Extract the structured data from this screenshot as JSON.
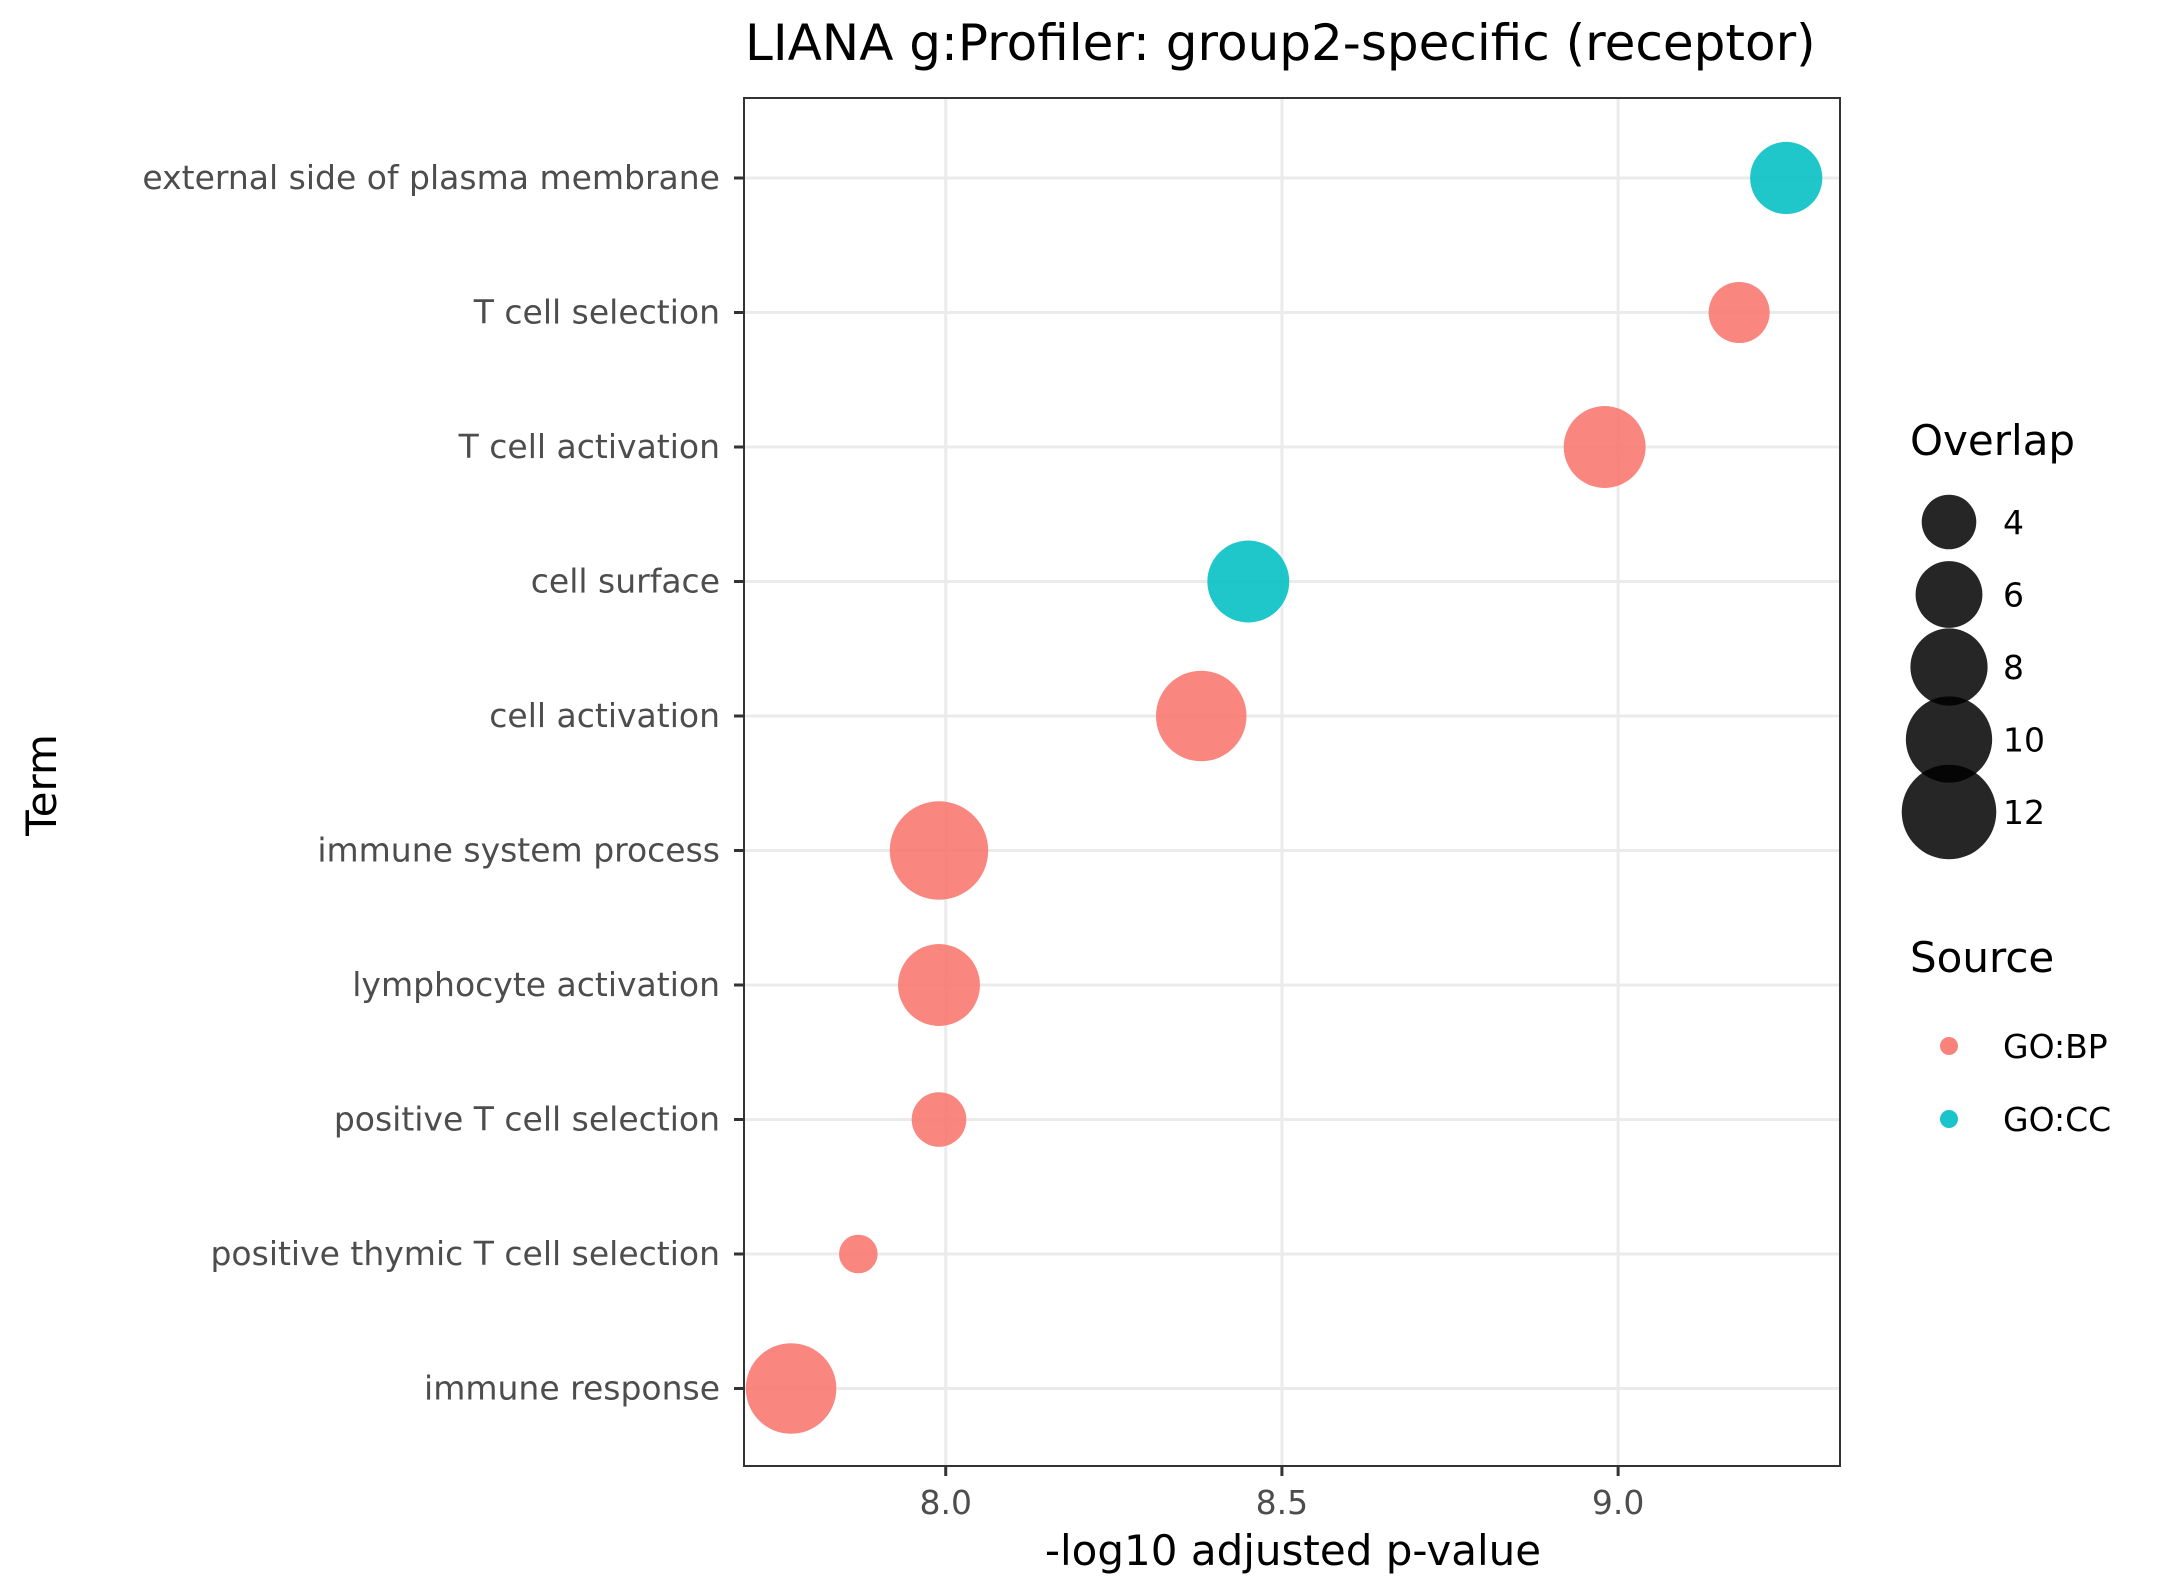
{
  "chart_data": {
    "type": "scatter",
    "title": "LIANA g:Profiler: group2-specific (receptor)",
    "xlabel": "-log10 adjusted p-value",
    "ylabel": "Term",
    "xlim": [
      7.7,
      9.33
    ],
    "xticks": [
      8.0,
      8.5,
      9.0
    ],
    "xtick_labels": [
      "8.0",
      "8.5",
      "9.0"
    ],
    "grid": true,
    "legend_position": "right",
    "categories": [
      "external side of plasma membrane",
      "T cell selection",
      "T cell activation",
      "cell surface",
      "cell activation",
      "immune system process",
      "lymphocyte activation",
      "positive T cell selection",
      "positive thymic T cell selection",
      "immune response"
    ],
    "points": [
      {
        "term": "external side of plasma membrane",
        "x": 9.25,
        "overlap": 7,
        "source": "GO:CC"
      },
      {
        "term": "T cell selection",
        "x": 9.18,
        "overlap": 5,
        "source": "GO:BP"
      },
      {
        "term": "T cell activation",
        "x": 8.98,
        "overlap": 9,
        "source": "GO:BP"
      },
      {
        "term": "cell surface",
        "x": 8.45,
        "overlap": 9,
        "source": "GO:CC"
      },
      {
        "term": "cell activation",
        "x": 8.38,
        "overlap": 11,
        "source": "GO:BP"
      },
      {
        "term": "immune system process",
        "x": 7.99,
        "overlap": 13,
        "source": "GO:BP"
      },
      {
        "term": "lymphocyte activation",
        "x": 7.99,
        "overlap": 9,
        "source": "GO:BP"
      },
      {
        "term": "positive T cell selection",
        "x": 7.99,
        "overlap": 4,
        "source": "GO:BP"
      },
      {
        "term": "positive thymic T cell selection",
        "x": 7.87,
        "overlap": 2,
        "source": "GO:BP"
      },
      {
        "term": "immune response",
        "x": 7.77,
        "overlap": 11,
        "source": "GO:BP"
      }
    ],
    "size_legend": {
      "title": "Overlap",
      "values": [
        4,
        6,
        8,
        10,
        12
      ],
      "labels": [
        "4",
        "6",
        "8",
        "10",
        "12"
      ],
      "color": "#000000"
    },
    "color_legend": {
      "title": "Source",
      "items": [
        {
          "label": "GO:BP",
          "color": "#F8766D"
        },
        {
          "label": "GO:CC",
          "color": "#00BFC4"
        }
      ]
    }
  }
}
